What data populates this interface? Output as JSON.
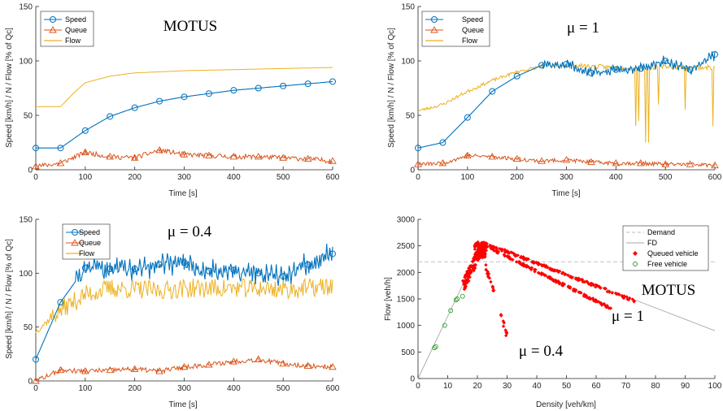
{
  "colors": {
    "speed": "#0072BD",
    "queue": "#D95319",
    "flow": "#EDB120",
    "queued": "#FF0000",
    "free": "#2CA02C",
    "demand": "#BBBBBB",
    "fd": "#AAAAAA",
    "axis": "#262626"
  },
  "chart_data": [
    {
      "type": "line",
      "annotation": "MOTUS",
      "xlabel": "Time [s]",
      "ylabel": "Speed [km/h] / N / Flow [% of Qc]",
      "xlim": [
        0,
        600
      ],
      "ylim": [
        0,
        150
      ],
      "xticks": [
        "0",
        "100",
        "200",
        "300",
        "400",
        "500",
        "600"
      ],
      "yticks": [
        "0",
        "50",
        "100",
        "150"
      ],
      "legend": {
        "position": "top-left",
        "entries": [
          "Speed",
          "Queue",
          "Flow"
        ]
      },
      "series": [
        {
          "name": "Speed",
          "x": [
            0,
            50,
            100,
            150,
            200,
            250,
            300,
            350,
            400,
            450,
            500,
            550,
            600
          ],
          "values": [
            20,
            20,
            36,
            49,
            57,
            63,
            67,
            70,
            73,
            75,
            77,
            79,
            81
          ]
        },
        {
          "name": "Queue",
          "x": [
            0,
            50,
            100,
            150,
            200,
            250,
            300,
            350,
            400,
            450,
            500,
            550,
            600
          ],
          "values": [
            3,
            6,
            16,
            12,
            11,
            18,
            14,
            13,
            12,
            12,
            11,
            10,
            8
          ]
        },
        {
          "name": "Flow",
          "x": [
            0,
            50,
            80,
            100,
            150,
            200,
            300,
            400,
            500,
            600
          ],
          "values": [
            58,
            58,
            72,
            80,
            86,
            89,
            91,
            92,
            93,
            94
          ]
        }
      ]
    },
    {
      "type": "line",
      "annotation": "μ = 1",
      "xlabel": "Time [s]",
      "ylabel": "Speed [km/h] / N / Flow [% of Qc]",
      "xlim": [
        0,
        600
      ],
      "ylim": [
        0,
        150
      ],
      "xticks": [
        "0",
        "100",
        "200",
        "300",
        "400",
        "500",
        "600"
      ],
      "yticks": [
        "0",
        "50",
        "100",
        "150"
      ],
      "legend": {
        "position": "top-right",
        "entries": [
          "Speed",
          "Queue",
          "Flow"
        ]
      },
      "series": [
        {
          "name": "Speed",
          "x": [
            0,
            50,
            100,
            150,
            200,
            250,
            300,
            350,
            400,
            450,
            500,
            550,
            600
          ],
          "values": [
            20,
            25,
            48,
            72,
            86,
            96,
            97,
            89,
            92,
            93,
            100,
            92,
            106
          ]
        },
        {
          "name": "Queue",
          "x": [
            0,
            50,
            100,
            150,
            200,
            250,
            300,
            350,
            400,
            450,
            500,
            550,
            600
          ],
          "values": [
            5,
            6,
            13,
            12,
            10,
            8,
            9,
            7,
            6,
            6,
            5,
            5,
            4
          ]
        },
        {
          "name": "Flow",
          "x": [
            0,
            50,
            100,
            150,
            200,
            250,
            300,
            350,
            400,
            450,
            500,
            550,
            600
          ],
          "values": [
            54,
            60,
            72,
            82,
            90,
            95,
            96,
            95,
            94,
            93,
            95,
            94,
            94
          ]
        }
      ]
    },
    {
      "type": "line",
      "annotation": "μ = 0.4",
      "xlabel": "Time [s]",
      "ylabel": "Speed [km/h] / N / Flow [% of Qc]",
      "xlim": [
        0,
        600
      ],
      "ylim": [
        0,
        150
      ],
      "xticks": [
        "0",
        "100",
        "200",
        "300",
        "400",
        "500",
        "600"
      ],
      "yticks": [
        "0",
        "50",
        "100",
        "150"
      ],
      "legend": {
        "position": "top-right",
        "entries": [
          "Speed",
          "Queue",
          "Flow"
        ]
      },
      "series": [
        {
          "name": "Speed",
          "x": [
            0,
            50,
            100,
            150,
            200,
            250,
            300,
            350,
            400,
            450,
            500,
            550,
            600
          ],
          "values": [
            20,
            73,
            105,
            104,
            104,
            108,
            110,
            102,
            103,
            100,
            97,
            108,
            118
          ]
        },
        {
          "name": "Queue",
          "x": [
            0,
            50,
            100,
            150,
            200,
            250,
            300,
            350,
            400,
            450,
            500,
            550,
            600
          ],
          "values": [
            0,
            10,
            9,
            10,
            11,
            9,
            13,
            15,
            18,
            20,
            16,
            14,
            13
          ]
        },
        {
          "name": "Flow",
          "x": [
            0,
            50,
            100,
            150,
            200,
            250,
            300,
            350,
            400,
            450,
            500,
            550,
            600
          ],
          "values": [
            46,
            66,
            80,
            86,
            85,
            84,
            86,
            86,
            86,
            86,
            85,
            86,
            88
          ]
        }
      ]
    },
    {
      "type": "scatter",
      "xlabel": "Density [veh/km]",
      "ylabel": "Flow [veh/h]",
      "xlim": [
        0,
        100
      ],
      "ylim": [
        0,
        3000
      ],
      "xticks": [
        "0",
        "10",
        "20",
        "30",
        "40",
        "50",
        "60",
        "70",
        "80",
        "90",
        "100"
      ],
      "yticks": [
        "0",
        "500",
        "1000",
        "1500",
        "2000",
        "2500",
        "3000"
      ],
      "legend": {
        "position": "top-right",
        "entries": [
          "Demand",
          "FD",
          "Queued vehicle",
          "Free vehicle"
        ]
      },
      "annotations": [
        "MOTUS",
        "μ = 1",
        "μ = 0.4"
      ],
      "demand": 2200,
      "fd": {
        "x": [
          0,
          22,
          100
        ],
        "values": [
          0,
          2580,
          900
        ]
      },
      "queued_branches": [
        {
          "x": [
            22,
            73
          ],
          "values": [
            2560,
            1460
          ]
        },
        {
          "x": [
            22,
            65
          ],
          "values": [
            2520,
            1320
          ]
        },
        {
          "x": [
            21,
            31
          ],
          "values": [
            2450,
            620
          ]
        }
      ],
      "free_vehicles": {
        "x": [
          5.5,
          6,
          9,
          11,
          12.8,
          13.2,
          15
        ],
        "values": [
          580,
          600,
          1000,
          1280,
          1480,
          1500,
          1550
        ]
      }
    }
  ]
}
